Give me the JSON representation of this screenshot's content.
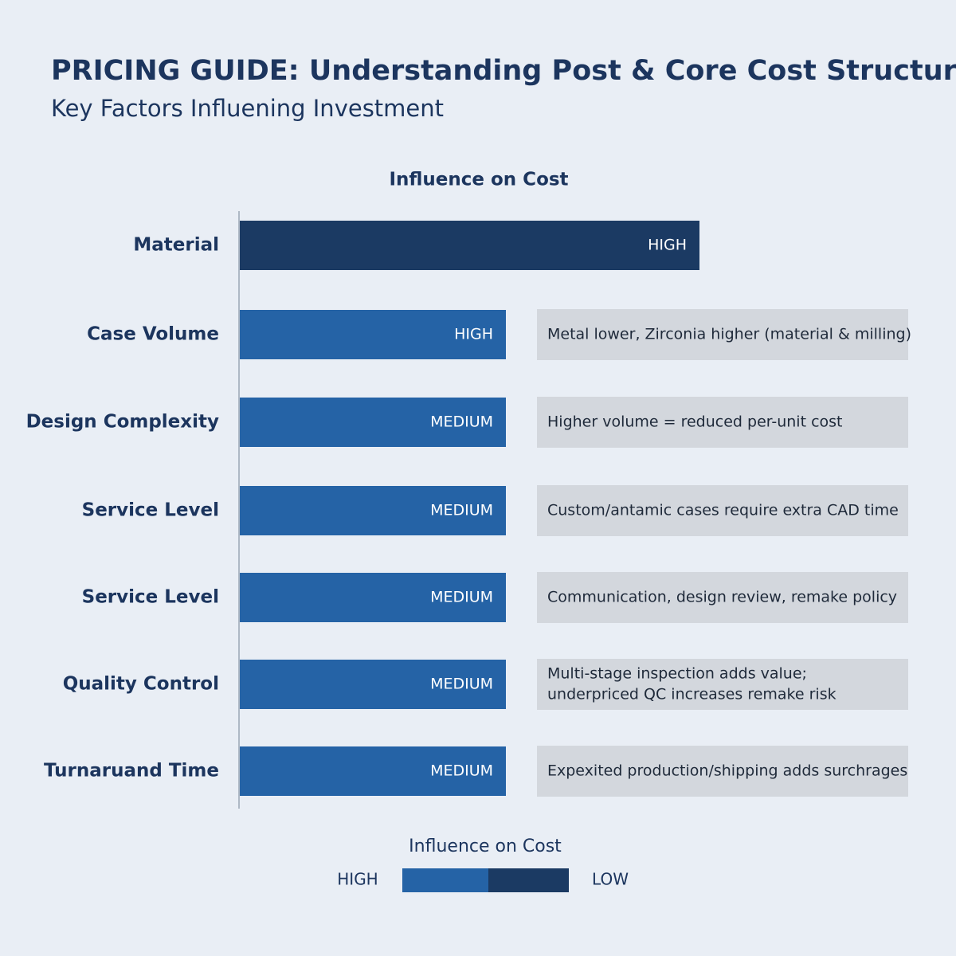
{
  "header": {
    "title": "PRICING GUIDE: Understanding Post & Core Cost Structures",
    "subtitle": "Key Factors Influening Investment"
  },
  "chart": {
    "heading": "Influence on Cost",
    "rows": [
      {
        "factor": "Material",
        "level": "HIGH"
      },
      {
        "factor": "Case Volume",
        "level": "HIGH",
        "note": [
          "Metal lower, Zirconia higher (material & milling)"
        ]
      },
      {
        "factor": "Design Complexity",
        "level": "MEDIUM",
        "note": [
          "Higher  volume = reduced per-unit cost"
        ]
      },
      {
        "factor": "Service Level",
        "level": "MEDIUM",
        "note": [
          "Custom/antamic cases require extra CAD time"
        ]
      },
      {
        "factor": "Service Level",
        "level": "MEDIUM",
        "note": [
          "Communication, design review, remake policy"
        ]
      },
      {
        "factor": "Quality Control",
        "level": "MEDIUM",
        "note": [
          "Multi-stage inspection adds value;",
          "underpriced QC increases remake risk"
        ]
      },
      {
        "factor": "Turnaruand Time",
        "level": "MEDIUM",
        "note": [
          "Expexited production/shipping adds surchrages"
        ]
      }
    ]
  },
  "legend": {
    "title": "Influence on Cost",
    "high": "HIGH",
    "low": "LOW"
  }
}
